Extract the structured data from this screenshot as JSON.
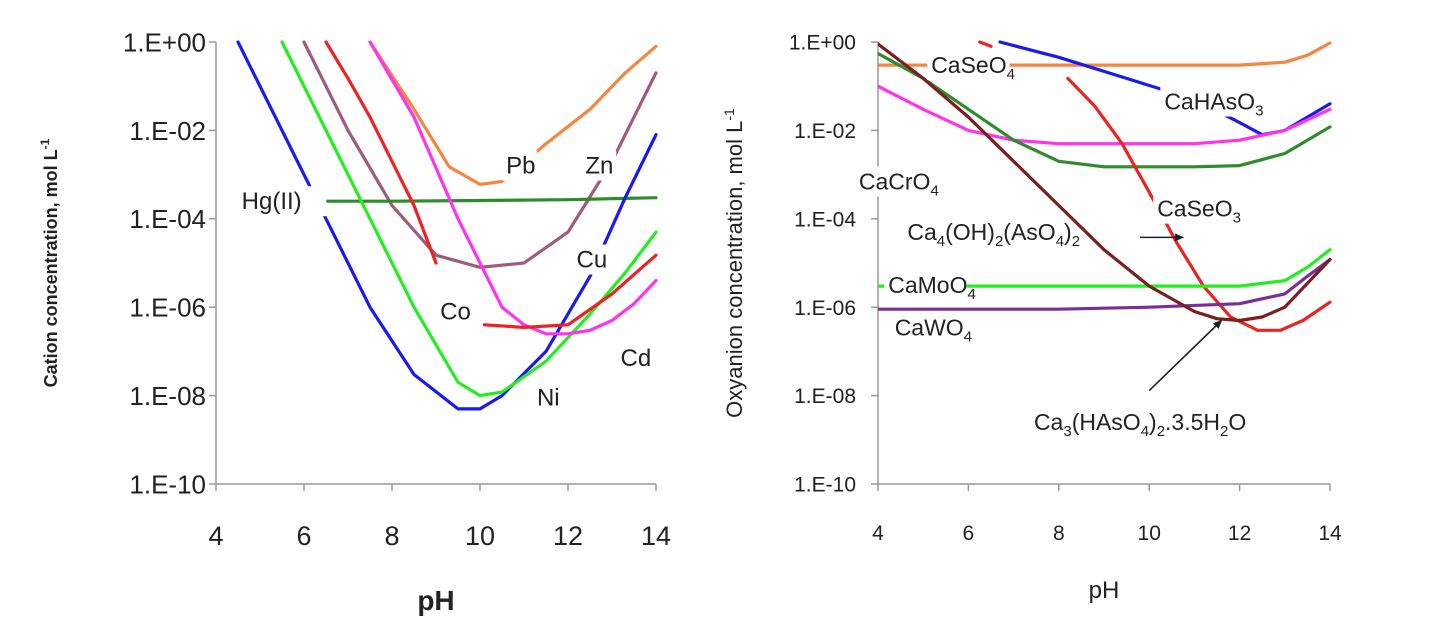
{
  "chart_data": [
    {
      "type": "line",
      "xlabel": "pH",
      "ylabel": "Cation concentration, mol L",
      "ylabel_sup": "-1",
      "xlim": [
        4,
        14
      ],
      "ylim_log10": [
        -10,
        0
      ],
      "x_ticks": [
        "4",
        "6",
        "8",
        "10",
        "12",
        "14"
      ],
      "y_ticks": [
        "1.E-10",
        "1.E-08",
        "1.E-06",
        "1.E-04",
        "1.E-02",
        "1.E+00"
      ],
      "y_tick_values": [
        1e-10,
        1e-08,
        1e-06,
        0.0001,
        0.01,
        1
      ],
      "series": [
        {
          "key": "pb",
          "name": "Pb",
          "color": "#f5853f",
          "x": [
            7.5,
            8.5,
            9.3,
            10.0,
            10.5,
            11.5,
            12.5,
            13.3,
            14.0
          ],
          "y": [
            1,
            0.03,
            0.0015,
            0.0006,
            0.0007,
            0.005,
            0.03,
            0.2,
            0.8
          ]
        },
        {
          "key": "zn",
          "name": "Zn",
          "color": "#a05a7a",
          "x": [
            6.0,
            7.0,
            8.0,
            9.0,
            10.0,
            11.0,
            12.0,
            13.0,
            14.0
          ],
          "y": [
            1,
            0.01,
            0.0002,
            1.5e-05,
            8e-06,
            1e-05,
            5e-05,
            0.002,
            0.2
          ]
        },
        {
          "key": "hg",
          "name": "Hg(II)",
          "color": "#2e8b2e",
          "x": [
            6.2,
            8.0,
            10.0,
            12.0,
            14.0
          ],
          "y": [
            0.00025,
            0.00025,
            0.00026,
            0.00027,
            0.0003
          ]
        },
        {
          "key": "cu",
          "name": "Cu",
          "color": "#1a1aee",
          "x": [
            4.5,
            5.5,
            6.5,
            7.5,
            8.5,
            9.5,
            10.0,
            10.5,
            11.5,
            12.5,
            13.3,
            14.0
          ],
          "y": [
            1,
            0.01,
            0.0001,
            1e-06,
            3e-08,
            5e-09,
            5e-09,
            1e-08,
            1e-07,
            5e-06,
            0.0003,
            0.008
          ]
        },
        {
          "key": "ni",
          "name": "Ni",
          "color": "#22ee22",
          "x": [
            5.5,
            6.5,
            7.5,
            8.5,
            9.5,
            10.0,
            10.5,
            11.5,
            12.5,
            13.3,
            14.0
          ],
          "y": [
            1,
            0.01,
            0.0001,
            1e-06,
            2e-08,
            1e-08,
            1.2e-08,
            6e-08,
            7e-07,
            6e-06,
            5e-05
          ]
        },
        {
          "key": "co",
          "name": "Co",
          "color": "#ee2222",
          "x": [
            6.5,
            7.0,
            7.5,
            8.0,
            8.5,
            9.0
          ],
          "y": [
            1,
            0.15,
            0.02,
            0.002,
            0.0002,
            1e-05
          ]
        },
        {
          "key": "cd",
          "name": "Cd",
          "color": "#ff33ee",
          "x": [
            7.5,
            8.5,
            9.5,
            10.5,
            11.0,
            11.5,
            12.0,
            12.5,
            13.0,
            13.5,
            14.0
          ],
          "y": [
            1,
            0.02,
            0.0001,
            1e-06,
            4e-07,
            2.5e-07,
            2.5e-07,
            3e-07,
            5e-07,
            1.2e-06,
            4e-06
          ]
        },
        {
          "key": "cd2",
          "name": "",
          "color": "#ee2222",
          "x": [
            10.1,
            11.0,
            12.0,
            13.0,
            14.0
          ],
          "y": [
            4e-07,
            3.5e-07,
            4e-07,
            2e-06,
            1.5e-05
          ]
        }
      ],
      "labels": [
        {
          "text": "Pb",
          "x": 10.9,
          "y": 0.0016
        },
        {
          "text": "Zn",
          "x": 12.7,
          "y": 0.0016
        },
        {
          "text": "Hg(II)",
          "x": 5.5,
          "y": 0.00025
        },
        {
          "text": "Cu",
          "x": 12.5,
          "y": 1.2e-05
        },
        {
          "text": "Co",
          "x": 9.4,
          "y": 8e-07
        },
        {
          "text": "Cd",
          "x": 13.5,
          "y": 7e-08
        },
        {
          "text": "Ni",
          "x": 11.6,
          "y": 9e-09
        }
      ]
    },
    {
      "type": "line",
      "xlabel": "pH",
      "ylabel": "Oxyanion concentration, mol L",
      "ylabel_sup": "-1",
      "xlim": [
        4,
        14
      ],
      "ylim_log10": [
        -10,
        0
      ],
      "x_ticks": [
        "4",
        "6",
        "8",
        "10",
        "12",
        "14"
      ],
      "y_ticks": [
        "1.E-10",
        "1.E-08",
        "1.E-06",
        "1.E-04",
        "1.E-02",
        "1.E+00"
      ],
      "y_tick_values": [
        1e-10,
        1e-08,
        1e-06,
        0.0001,
        0.01,
        1
      ],
      "series": [
        {
          "key": "caseo4",
          "name": "CaSeO₄",
          "color": "#f5853f",
          "x": [
            4.0,
            6.0,
            8.0,
            10.0,
            12.0,
            13.0,
            13.5,
            14.0
          ],
          "y": [
            0.3,
            0.3,
            0.3,
            0.3,
            0.3,
            0.35,
            0.5,
            0.95
          ]
        },
        {
          "key": "cahaso3",
          "name": "CaHAsO₃",
          "color": "#1a1aee",
          "x": [
            6.7,
            8.0,
            9.5,
            11.0,
            12.0,
            12.5,
            13.0,
            13.5,
            14.0
          ],
          "y": [
            1,
            0.45,
            0.15,
            0.05,
            0.015,
            0.008,
            0.01,
            0.02,
            0.04
          ]
        },
        {
          "key": "cacro4",
          "name": "CaCrO₄",
          "color": "#ff33ee",
          "x": [
            4.0,
            5.0,
            6.0,
            7.0,
            8.0,
            9.0,
            10.0,
            11.0,
            12.0,
            13.0,
            14.0
          ],
          "y": [
            0.1,
            0.03,
            0.01,
            0.006,
            0.005,
            0.005,
            0.005,
            0.005,
            0.006,
            0.01,
            0.03
          ]
        },
        {
          "key": "ca4",
          "name": "Ca₄(OH)₂(AsO₄)₂",
          "color": "#2e8b2e",
          "x": [
            4.0,
            5.0,
            6.0,
            7.0,
            8.0,
            9.0,
            10.0,
            11.0,
            12.0,
            13.0,
            14.0
          ],
          "y": [
            0.55,
            0.15,
            0.03,
            0.006,
            0.002,
            0.0015,
            0.0015,
            0.0015,
            0.0016,
            0.003,
            0.012
          ]
        },
        {
          "key": "caseo3",
          "name": "CaSeO₃",
          "color": "#ee2222",
          "x": [
            8.2,
            8.8,
            9.4,
            10.0,
            10.6,
            11.2,
            11.8,
            12.4,
            12.9,
            13.4,
            14.0
          ],
          "y": [
            0.15,
            0.035,
            0.005,
            0.0004,
            3e-05,
            3e-06,
            6e-07,
            3e-07,
            3e-07,
            5e-07,
            1.3e-06
          ]
        },
        {
          "key": "caseo3top",
          "name": "",
          "color": "#ee2222",
          "x": [
            6.25,
            6.5
          ],
          "y": [
            1,
            0.8
          ]
        },
        {
          "key": "camoo4",
          "name": "CaMoO₄",
          "color": "#22ee22",
          "x": [
            4.0,
            6.0,
            8.0,
            10.0,
            12.0,
            13.0,
            13.5,
            14.0
          ],
          "y": [
            3e-06,
            3e-06,
            3e-06,
            3e-06,
            3e-06,
            4e-06,
            8e-06,
            2e-05
          ]
        },
        {
          "key": "cawo4",
          "name": "CaWO₄",
          "color": "#7a2e9a",
          "x": [
            4.0,
            6.0,
            8.0,
            10.0,
            12.0,
            13.0,
            13.5,
            14.0
          ],
          "y": [
            9e-07,
            9e-07,
            9e-07,
            1e-06,
            1.2e-06,
            2e-06,
            5e-06,
            1.2e-05
          ]
        },
        {
          "key": "ca3",
          "name": "Ca₃(HAsO₄)₂.3.5H₂O",
          "color": "#7a1e1e",
          "x": [
            4.0,
            5.0,
            6.0,
            7.0,
            8.0,
            9.0,
            10.0,
            11.0,
            11.5,
            12.0,
            12.5,
            13.0,
            14.0
          ],
          "y": [
            0.9,
            0.15,
            0.02,
            0.002,
            0.0002,
            2e-05,
            3e-06,
            8e-07,
            5.5e-07,
            5e-07,
            6e-07,
            1e-06,
            1.2e-05
          ]
        }
      ],
      "labels": [
        {
          "text": "CaSeO",
          "sub": "4",
          "x": 6.0,
          "y": 0.3
        },
        {
          "text": "CaHAsO",
          "sub": "3",
          "x": 11.3,
          "y": 0.045
        },
        {
          "text": "CaCrO",
          "sub": "4",
          "x": 4.4,
          "y": 0.0007
        },
        {
          "text": "CaSeO",
          "sub": "3",
          "x": 11.0,
          "y": 0.00017
        },
        {
          "text": "CaMoO",
          "sub": "4",
          "x": 5.05,
          "y": 3.2e-06
        },
        {
          "text": "CaWO",
          "sub": "4",
          "x": 5.05,
          "y": 3.5e-07
        }
      ],
      "formula_labels": [
        {
          "parts": [
            [
              "Ca",
              ""
            ],
            [
              "4",
              "sub"
            ],
            [
              "(OH)",
              ""
            ],
            [
              "2",
              "sub"
            ],
            [
              "(AsO",
              ""
            ],
            [
              "4",
              "sub"
            ],
            [
              ")",
              ""
            ],
            [
              "2",
              "sub"
            ]
          ],
          "x": 4.65,
          "y": 5e-05
        },
        {
          "parts": [
            [
              "Ca",
              ""
            ],
            [
              "3",
              "sub"
            ],
            [
              "(HAsO",
              ""
            ],
            [
              "4",
              "sub"
            ],
            [
              ")",
              ""
            ],
            [
              "2",
              "sub"
            ],
            [
              ".3.5H",
              ""
            ],
            [
              "2",
              "sub"
            ],
            [
              "O",
              ""
            ]
          ],
          "x": 7.45,
          "y": 2.5e-09
        }
      ],
      "arrows": [
        {
          "from": [
            9.8,
            3.8e-05
          ],
          "to": [
            10.75,
            3.8e-05
          ]
        },
        {
          "from": [
            10.0,
            1.3e-08
          ],
          "to": [
            11.6,
            5e-07
          ]
        }
      ]
    }
  ]
}
